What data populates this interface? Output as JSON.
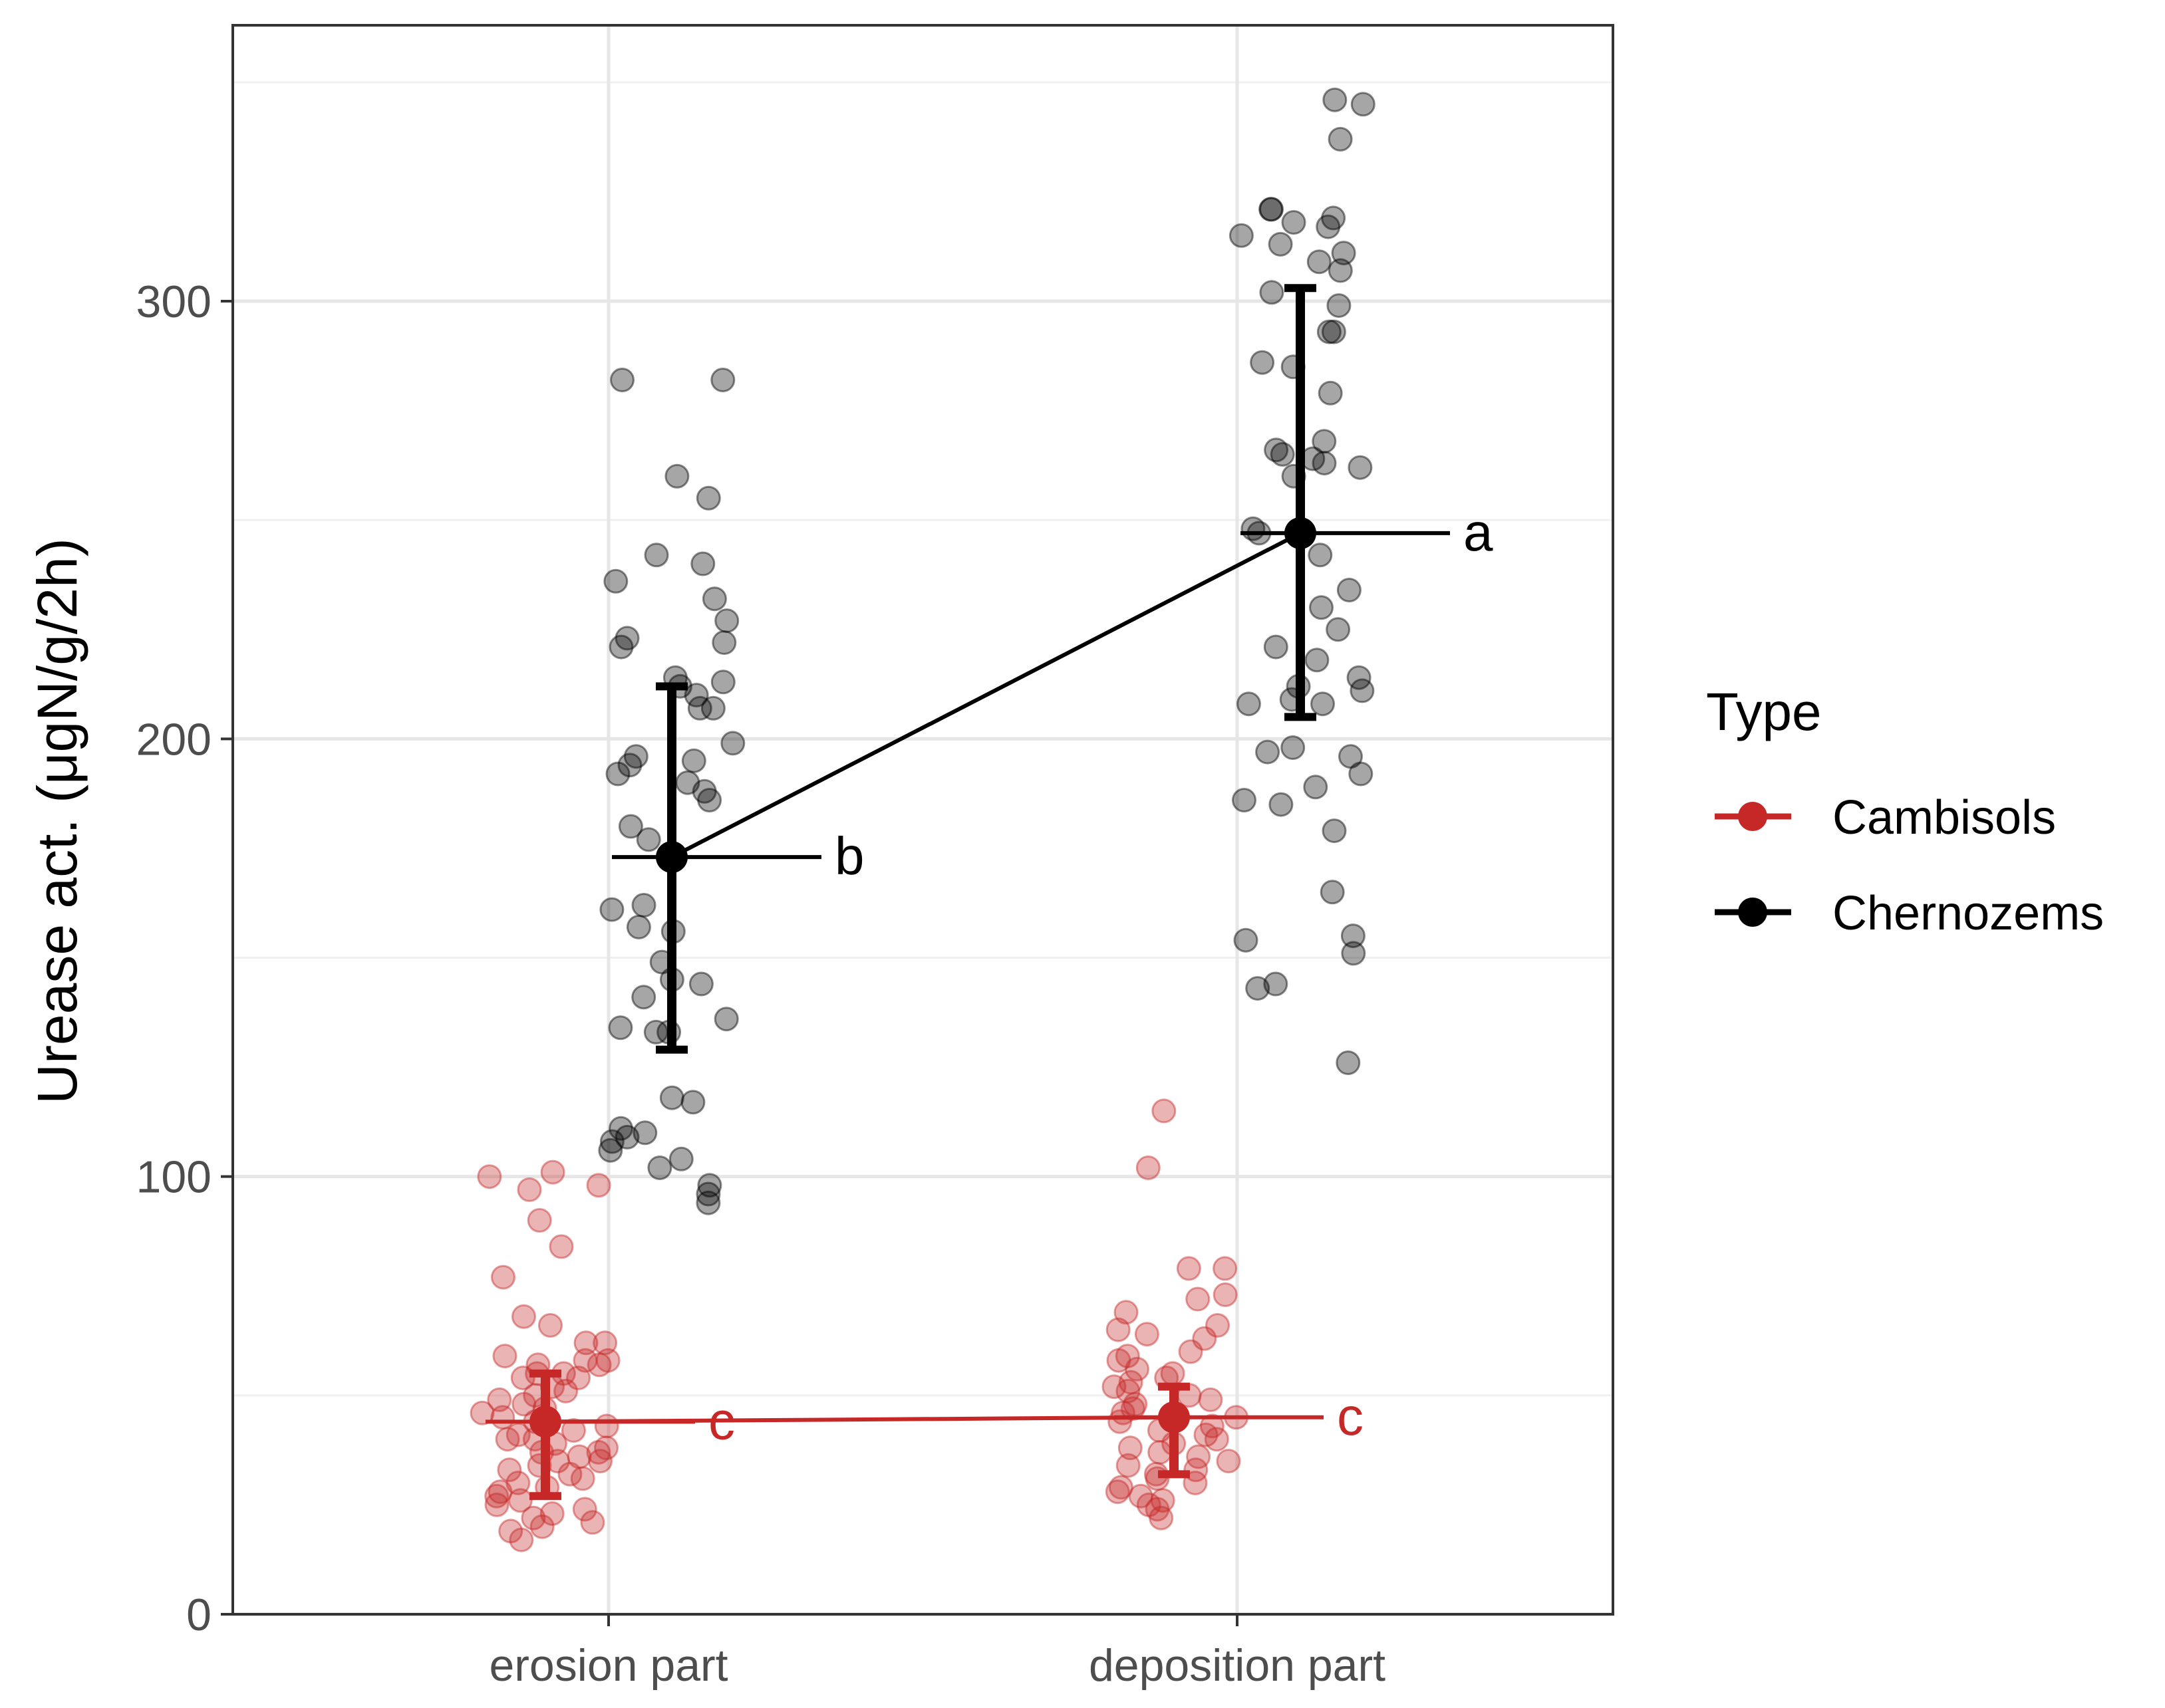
{
  "chart_data": {
    "type": "scatter",
    "ylabel": "Urease act. (μgN/g/2h)",
    "xlabel": "",
    "ylim": [
      0,
      350
    ],
    "y_ticks": [
      0,
      100,
      200,
      300
    ],
    "y_tick_labels": [
      "0",
      "100",
      "200",
      "300"
    ],
    "categories": [
      "erosion part",
      "deposition part"
    ],
    "grid": true,
    "legend": {
      "title": "Type",
      "position": "right",
      "entries": [
        "Cambisols",
        "Chernozems"
      ]
    },
    "series": [
      {
        "name": "Cambisols",
        "color": "#c62828",
        "means": [
          44,
          45
        ],
        "error_low": [
          27,
          32
        ],
        "error_high": [
          55,
          52
        ],
        "significance": [
          "c",
          "c"
        ],
        "points": [
          [
            98,
            100,
            101,
            97,
            90,
            84,
            77,
            68,
            66,
            62,
            62,
            59,
            58,
            58,
            57,
            57,
            55,
            55,
            54,
            54,
            52,
            51,
            50,
            49,
            48,
            47,
            46,
            45,
            44,
            43,
            42,
            41,
            40,
            40,
            39,
            38,
            37,
            37,
            36,
            35,
            35,
            34,
            33,
            32,
            31,
            30,
            29,
            28,
            27,
            26,
            25,
            24,
            23,
            22,
            21,
            20,
            19,
            17
          ],
          [
            115,
            102,
            79,
            79,
            73,
            72,
            69,
            66,
            65,
            64,
            63,
            60,
            59,
            58,
            56,
            55,
            54,
            53,
            52,
            51,
            50,
            49,
            48,
            47,
            46,
            45,
            44,
            43,
            42,
            41,
            40,
            39,
            38,
            37,
            36,
            35,
            34,
            33,
            32,
            31,
            30,
            29,
            28,
            27,
            26,
            25,
            24,
            22
          ]
        ]
      },
      {
        "name": "Chernozems",
        "color": "#000000",
        "means": [
          173,
          247
        ],
        "error_low": [
          129,
          205
        ],
        "error_high": [
          212,
          303
        ],
        "significance": [
          "b",
          "a"
        ],
        "points": [
          [
            282,
            282,
            260,
            255,
            242,
            240,
            236,
            232,
            227,
            223,
            222,
            221,
            214,
            213,
            212,
            210,
            207,
            207,
            199,
            196,
            195,
            194,
            192,
            190,
            188,
            186,
            180,
            177,
            162,
            161,
            157,
            156,
            149,
            145,
            144,
            141,
            136,
            134,
            133,
            133,
            118,
            117,
            111,
            110,
            109,
            108,
            106,
            104,
            102,
            98,
            96,
            94
          ],
          [
            346,
            345,
            337,
            321,
            321,
            319,
            318,
            317,
            315,
            313,
            311,
            309,
            307,
            302,
            299,
            293,
            293,
            286,
            285,
            279,
            268,
            266,
            265,
            264,
            263,
            262,
            260,
            248,
            247,
            242,
            234,
            230,
            225,
            221,
            218,
            214,
            212,
            211,
            209,
            208,
            208,
            198,
            197,
            196,
            192,
            189,
            186,
            185,
            179,
            165,
            155,
            154,
            151,
            144,
            143,
            126
          ]
        ]
      }
    ]
  }
}
